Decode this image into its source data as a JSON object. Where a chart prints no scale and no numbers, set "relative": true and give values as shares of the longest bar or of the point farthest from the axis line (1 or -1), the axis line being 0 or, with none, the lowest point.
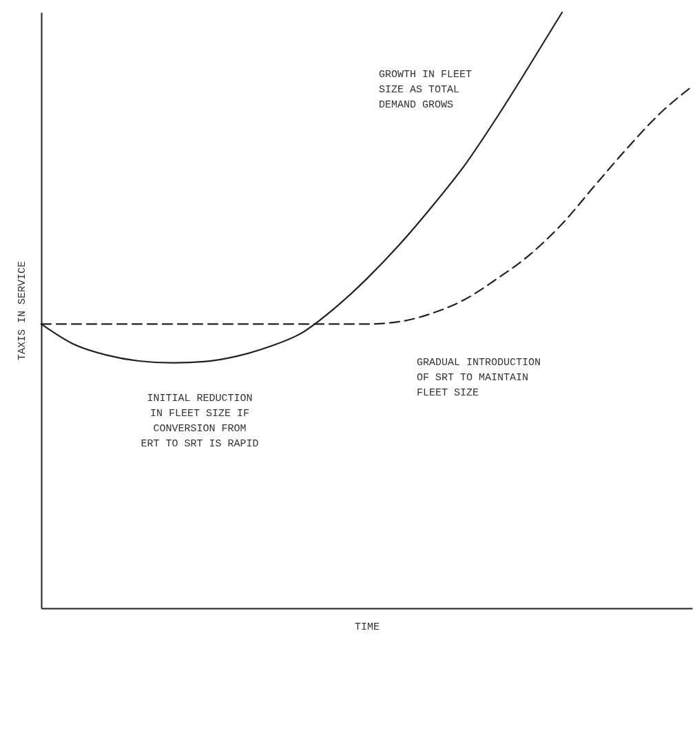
{
  "chart_data": {
    "type": "line",
    "relative": true,
    "xlabel": "TIME",
    "ylabel": "TAXIS IN SERVICE",
    "marker": "none",
    "categories": [
      null,
      null,
      null,
      null,
      null,
      null,
      null,
      null,
      null,
      null,
      null,
      null,
      null,
      null,
      null,
      null,
      null,
      null,
      null,
      null,
      null
    ],
    "series": [
      {
        "color": "#231f20",
        "line_style": "solid",
        "values": [
          0.477,
          0.443,
          0.425,
          0.415,
          0.412,
          0.414,
          0.423,
          0.439,
          0.462,
          0.503,
          0.553,
          0.61,
          0.674,
          0.743,
          0.824,
          0.911,
          1,
          null,
          null,
          null,
          null
        ]
      },
      {
        "color": "#231f20",
        "line_style": "dashed",
        "values": [
          0.477,
          0.477,
          0.477,
          0.477,
          0.477,
          0.477,
          0.477,
          0.477,
          0.477,
          0.477,
          0.477,
          0.481,
          0.495,
          0.518,
          0.553,
          0.593,
          0.645,
          0.709,
          0.772,
          0.83,
          0.876
        ]
      }
    ],
    "annotations": [
      "GROWTH IN FLEET\nSIZE AS TOTAL\nDEMAND GROWS",
      "GRADUAL INTRODUCTION\nOF SRT TO MAINTAIN\nFLEET SIZE",
      "INITIAL REDUCTION\nIN FLEET SIZE IF\nCONVERSION FROM\nERT TO SRT IS RAPID"
    ]
  }
}
